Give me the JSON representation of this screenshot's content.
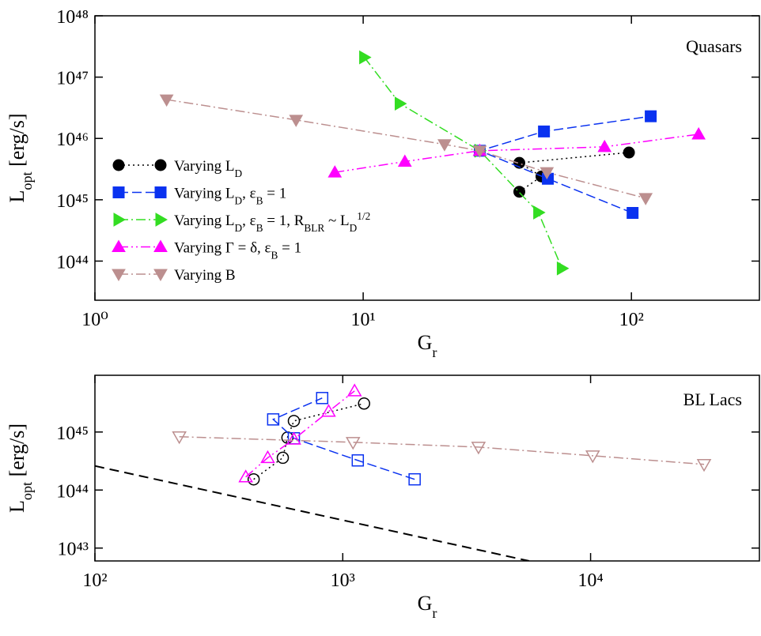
{
  "chart_data": [
    {
      "type": "line",
      "annotation": "Quasars",
      "x_label": [
        {
          "text": "G"
        },
        {
          "text": "r",
          "shift": "sub"
        }
      ],
      "y_label": [
        {
          "text": "L"
        },
        {
          "text": "opt",
          "shift": "sub"
        },
        {
          "text": " [erg/s]"
        }
      ],
      "xscale": "log",
      "yscale": "log",
      "xlim": [
        1,
        300
      ],
      "ylim": [
        2.3e+43,
        1e+48
      ],
      "xticks": [
        {
          "value": 1,
          "label": "10⁰"
        },
        {
          "value": 10,
          "label": "10¹"
        },
        {
          "value": 100,
          "label": "10²"
        }
      ],
      "yticks": [
        {
          "value": 1e+44,
          "label": "10⁴⁴"
        },
        {
          "value": 1e+45,
          "label": "10⁴⁵"
        },
        {
          "value": 1e+46,
          "label": "10⁴⁶"
        },
        {
          "value": 1e+47,
          "label": "10⁴⁷"
        },
        {
          "value": 1e+48,
          "label": "10⁴⁸"
        }
      ],
      "legend": "left",
      "series": [
        {
          "name": [
            {
              "text": "Varying L"
            },
            {
              "text": "D",
              "shift": "sub"
            }
          ],
          "color": "#000000",
          "marker": "circle",
          "filled": true,
          "dash": "dotted",
          "x": [
            38.2,
            46.2,
            38.2,
            97.9
          ],
          "values": [
            1.35e+45,
            2.4e+45,
            4e+45,
            5.9e+45
          ]
        },
        {
          "name": [
            {
              "text": "Varying L"
            },
            {
              "text": "D",
              "shift": "sub"
            },
            {
              "text": ", ε"
            },
            {
              "text": "B",
              "shift": "sub"
            },
            {
              "text": " = 1"
            }
          ],
          "color": "#0a32f0",
          "marker": "square",
          "filled": true,
          "dash": "dashed",
          "x": [
            101,
            48.8,
            27.2,
            47.2,
            118
          ],
          "values": [
            6.1e+44,
            2.2e+45,
            6.3e+45,
            1.3e+46,
            2.3e+46
          ]
        },
        {
          "name": [
            {
              "text": "Varying L"
            },
            {
              "text": "D",
              "shift": "sub"
            },
            {
              "text": ", ε"
            },
            {
              "text": "B",
              "shift": "sub"
            },
            {
              "text": " = 1, R"
            },
            {
              "text": "BLR",
              "shift": "sub"
            },
            {
              "text": " ~ L"
            },
            {
              "text": "D",
              "shift": "sub"
            },
            {
              "text": "1/2",
              "shift": "super"
            }
          ],
          "color": "#33dd22",
          "marker": "triangle-right",
          "filled": true,
          "dash": "dash-dot",
          "x": [
            10.1,
            13.7,
            27.2,
            45.0,
            55.1
          ],
          "values": [
            2.1e+47,
            3.7e+46,
            6.3e+45,
            6.2e+44,
            7.6e+43
          ]
        },
        {
          "name": [
            {
              "text": "Varying Γ = δ, ε"
            },
            {
              "text": "B",
              "shift": "sub"
            },
            {
              "text": " = 1"
            }
          ],
          "color": "#ff00ff",
          "marker": "triangle-up",
          "filled": true,
          "dash": "dash-dot-dot",
          "x": [
            7.84,
            14.3,
            27.2,
            79.4,
            178
          ],
          "values": [
            2.8e+45,
            4.2e+45,
            6.3e+45,
            7.3e+45,
            1.17e+46
          ]
        },
        {
          "name": [
            {
              "text": "Varying B"
            }
          ],
          "color": "#bc8f8f",
          "marker": "triangle-down",
          "filled": true,
          "dash": "dash-dot",
          "x": [
            1.85,
            5.62,
            20.1,
            27.2,
            48.4,
            113
          ],
          "values": [
            4.3e+46,
            2e+46,
            8e+45,
            6.3e+45,
            2.8e+45,
            1.06e+45
          ]
        }
      ]
    },
    {
      "type": "line",
      "annotation": "BL Lacs",
      "x_label": [
        {
          "text": "G"
        },
        {
          "text": "r",
          "shift": "sub"
        }
      ],
      "y_label": [
        {
          "text": "L"
        },
        {
          "text": "opt",
          "shift": "sub"
        },
        {
          "text": " [erg/s]"
        }
      ],
      "xscale": "log",
      "yscale": "log",
      "xlim": [
        100,
        48000
      ],
      "ylim": [
        6e+42,
        9.5e+45
      ],
      "xticks": [
        {
          "value": 100,
          "label": "10²"
        },
        {
          "value": 1000,
          "label": "10³"
        },
        {
          "value": 10000,
          "label": "10⁴"
        }
      ],
      "yticks": [
        {
          "value": 1e+43,
          "label": "10⁴³"
        },
        {
          "value": 1e+44,
          "label": "10⁴⁴"
        },
        {
          "value": 1e+45,
          "label": "10⁴⁵"
        }
      ],
      "series": [
        {
          "color": "#000000",
          "marker": "circle",
          "filled": false,
          "dash": "dotted",
          "x": [
            437,
            573,
            598,
            635,
            1219
          ],
          "values": [
            1.53e+44,
            3.6e+44,
            8e+44,
            1.55e+45,
            3.1e+45
          ]
        },
        {
          "color": "#0a32f0",
          "marker": "square",
          "filled": false,
          "dash": "dashed",
          "x": [
            1950,
            1150,
            635,
            524,
            826
          ],
          "values": [
            1.53e+44,
            3.24e+44,
            7.8e+44,
            1.65e+45,
            3.85e+45
          ]
        },
        {
          "color": "#ff00ff",
          "marker": "triangle-up",
          "filled": false,
          "dash": "dash-dot-dot",
          "x": [
            406,
            498,
            635,
            877,
            1116
          ],
          "values": [
            1.68e+44,
            3.6e+44,
            7.5e+44,
            2.26e+45,
            5.1e+45
          ]
        },
        {
          "color": "#bc8f8f",
          "marker": "triangle-down",
          "filled": false,
          "dash": "dash-dot",
          "x": [
            219,
            1100,
            3530,
            10200,
            28700
          ],
          "values": [
            8.3e+44,
            6.65e+44,
            5.5e+44,
            3.9e+44,
            2.77e+44
          ]
        },
        {
          "color": "#000000",
          "dash": "long-dash",
          "x": [
            100,
            5650
          ],
          "values": [
            2.6e+44,
            6e+42
          ]
        }
      ]
    }
  ]
}
